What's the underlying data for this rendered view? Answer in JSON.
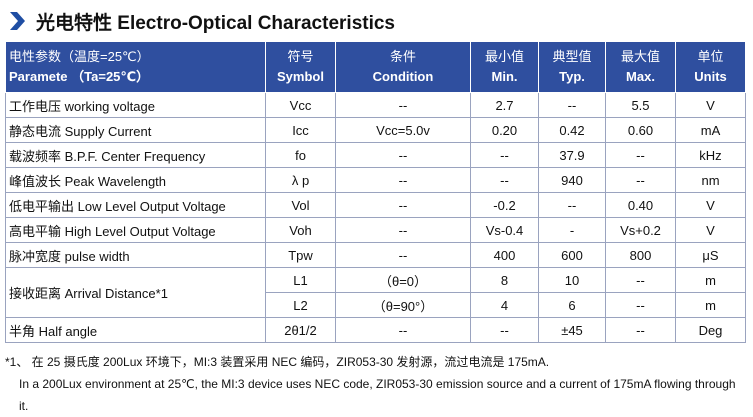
{
  "header": {
    "title": "光电特性 Electro-Optical Characteristics"
  },
  "table": {
    "columns": [
      {
        "cn": "电性参数（温度=25℃）",
        "en": "Paramete （Ta=25℃）"
      },
      {
        "cn": "符号",
        "en": "Symbol"
      },
      {
        "cn": "条件",
        "en": "Condition"
      },
      {
        "cn": "最小值",
        "en": "Min."
      },
      {
        "cn": "典型值",
        "en": "Typ."
      },
      {
        "cn": "最大值",
        "en": "Max."
      },
      {
        "cn": "单位",
        "en": "Units"
      }
    ],
    "rows": [
      {
        "parameter": "工作电压 working voltage",
        "cells": [
          [
            "Vcc",
            "--",
            "2.7",
            "--",
            "5.5",
            "V"
          ]
        ]
      },
      {
        "parameter": "静态电流 Supply Current",
        "cells": [
          [
            "Icc",
            "Vcc=5.0v",
            "0.20",
            "0.42",
            "0.60",
            "mA"
          ]
        ]
      },
      {
        "parameter": "载波频率 B.P.F. Center Frequency",
        "cells": [
          [
            "fo",
            "--",
            "--",
            "37.9",
            "--",
            "kHz"
          ]
        ]
      },
      {
        "parameter": "峰值波长 Peak Wavelength",
        "cells": [
          [
            "λ p",
            "--",
            "--",
            "940",
            "--",
            "nm"
          ]
        ]
      },
      {
        "parameter": "低电平输出 Low Level Output Voltage",
        "cells": [
          [
            "Vol",
            "--",
            "-0.2",
            "--",
            "0.40",
            "V"
          ]
        ]
      },
      {
        "parameter": "高电平输 High Level Output Voltage",
        "cells": [
          [
            "Voh",
            "--",
            "Vs-0.4",
            "-",
            "Vs+0.2",
            "V"
          ]
        ]
      },
      {
        "parameter": "脉冲宽度 pulse width",
        "cells": [
          [
            "Tpw",
            "--",
            "400",
            "600",
            "800",
            "μS"
          ]
        ]
      },
      {
        "parameter": "接收距离 Arrival Distance*1",
        "cells": [
          [
            "L1",
            "（θ=0）",
            "8",
            "10",
            "--",
            "m"
          ],
          [
            "L2",
            "（θ=90°）",
            "4",
            "6",
            "--",
            "m"
          ]
        ]
      },
      {
        "parameter": "半角 Half angle",
        "cells": [
          [
            "2θ1/2",
            "--",
            "--",
            "±45",
            "--",
            "Deg"
          ]
        ]
      }
    ]
  },
  "note": {
    "cn": "*1、 在 25 摄氏度 200Lux 环境下，MI:3 装置采用 NEC 编码，ZIR053-30 发射源，流过电流是 175mA.",
    "en": "In a 200Lux environment at 25℃, the MI:3 device uses NEC code, ZIR053-30 emission source and a current of 175mA flowing through it."
  }
}
